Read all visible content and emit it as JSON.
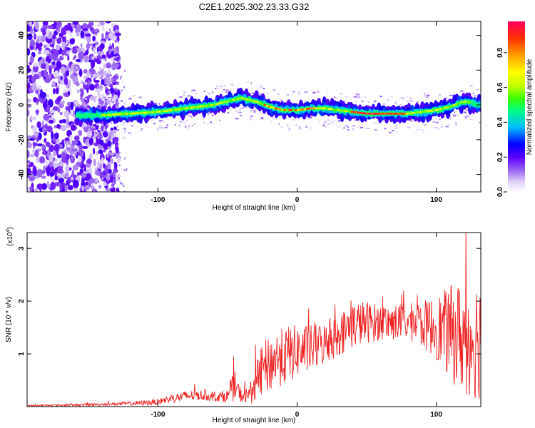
{
  "title": "C2E1.2025.302.23.33.G32",
  "chart_data": [
    {
      "type": "heatmap",
      "name": "spectrogram",
      "xlabel": "Height of straight line (km)",
      "ylabel": "Frequency (Hz)",
      "xlim": [
        -194,
        132
      ],
      "ylim": [
        -50,
        48
      ],
      "x_ticks": [
        -100,
        0,
        100
      ],
      "y_ticks": [
        40,
        20,
        0,
        -20,
        -40
      ],
      "ridge": {
        "x": [
          -155,
          -140,
          -120,
          -100,
          -80,
          -60,
          -50,
          -40,
          -30,
          -20,
          -10,
          0,
          10,
          20,
          30,
          40,
          50,
          60,
          70,
          80,
          90,
          100,
          110,
          120,
          132
        ],
        "frequency_hz": [
          -6,
          -6,
          -5,
          -4,
          -2,
          0,
          2,
          4,
          2,
          -1,
          -3,
          -3,
          -2,
          -2,
          -3,
          -4,
          -5,
          -5,
          -5,
          -5,
          -4,
          -3,
          -1,
          2,
          0
        ]
      },
      "colorbar": {
        "label": "Normalized spectral amplitude",
        "ticks": [
          "0.0",
          "0.2",
          "0.4",
          "0.6",
          "0.8"
        ],
        "range": [
          0.0,
          0.98
        ],
        "colors": [
          "#ffffff",
          "#e0d0f8",
          "#a070f0",
          "#6000ff",
          "#0000ff",
          "#00c0ff",
          "#00ff80",
          "#40ff00",
          "#c0ff00",
          "#ffff00",
          "#ffa000",
          "#ff3000",
          "#ff0060"
        ]
      }
    },
    {
      "type": "line",
      "name": "snr",
      "xlabel": "Height of straight line (km)",
      "ylabel": "SNR (10 * v/v)",
      "scale_label": "(x10",
      "scale_exp": "4",
      "scale_close": ")",
      "xlim": [
        -194,
        132
      ],
      "ylim": [
        0,
        3.3
      ],
      "x_ticks": [
        -100,
        0,
        100
      ],
      "y_ticks": [
        1,
        2,
        3
      ],
      "color": "#ee2222",
      "envelope": {
        "x": [
          -194,
          -160,
          -130,
          -110,
          -100,
          -90,
          -80,
          -70,
          -60,
          -50,
          -45,
          -40,
          -35,
          -30,
          -25,
          -20,
          -15,
          -10,
          -5,
          0,
          10,
          20,
          30,
          40,
          50,
          60,
          70,
          80,
          90,
          100,
          110,
          120,
          132
        ],
        "mean": [
          0.02,
          0.03,
          0.05,
          0.07,
          0.09,
          0.15,
          0.2,
          0.22,
          0.18,
          0.2,
          0.4,
          0.2,
          0.22,
          0.4,
          0.7,
          0.8,
          0.9,
          0.95,
          1.0,
          1.05,
          1.1,
          1.2,
          1.35,
          1.55,
          1.6,
          1.6,
          1.6,
          1.6,
          1.55,
          1.5,
          1.4,
          1.3,
          1.3
        ],
        "spread": [
          0.01,
          0.02,
          0.03,
          0.05,
          0.06,
          0.08,
          0.1,
          0.1,
          0.08,
          0.12,
          0.3,
          0.12,
          0.15,
          0.35,
          0.5,
          0.55,
          0.55,
          0.55,
          0.55,
          0.5,
          0.45,
          0.4,
          0.4,
          0.45,
          0.4,
          0.35,
          0.35,
          0.35,
          0.45,
          0.6,
          0.9,
          1.1,
          1.2
        ]
      }
    }
  ]
}
